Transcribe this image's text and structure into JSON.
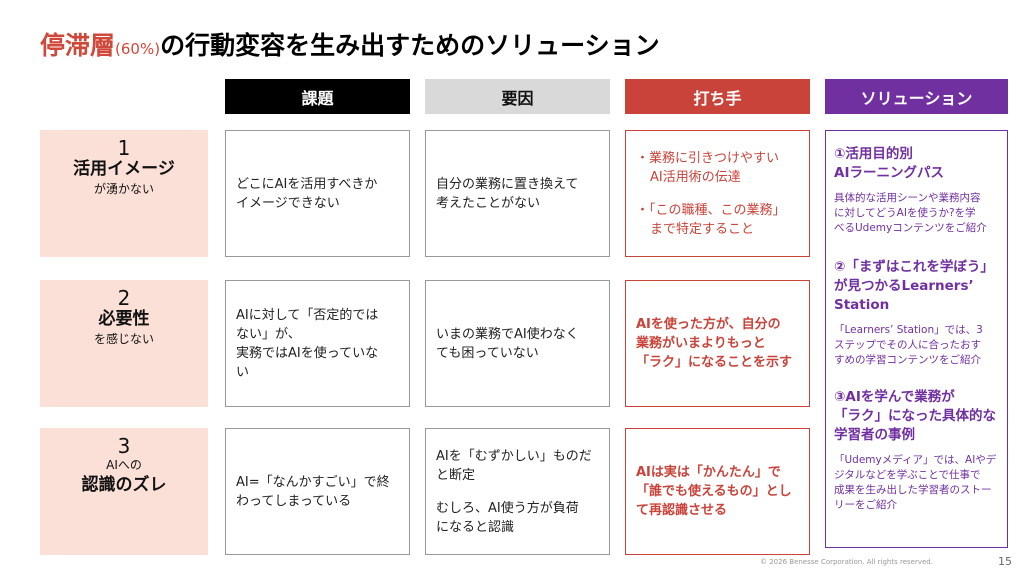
{
  "title": {
    "highlight": "停滞層",
    "note": "(60%)",
    "rest": "の行動変容を生み出すためのソリューション"
  },
  "headers": [
    "課題",
    "要因",
    "打ち手",
    "ソリューション"
  ],
  "rows": [
    {
      "number": "1",
      "label": {
        "main": "活用イメージ",
        "after": "が湧かない"
      },
      "issue": [
        [
          "どこにAIを活用すべきか",
          "イメージできない"
        ]
      ],
      "cause": [
        [
          "自分の業務に置き換えて",
          "考えたことがない"
        ]
      ],
      "action": [
        [
          "・業務に引きつけやすい",
          "AI活用術の伝達"
        ],
        [
          "・「この職種、この業務」",
          "まで特定すること"
        ]
      ]
    },
    {
      "number": "2",
      "label": {
        "main": "必要性",
        "after": "を感じない"
      },
      "issue": [
        [
          "AIに対して「否定的では",
          "ない」が、",
          "実務ではAIを使っていな",
          "い"
        ]
      ],
      "cause": [
        [
          "いまの業務でAI使わなく",
          "ても困っていない"
        ]
      ],
      "action": [
        [
          "AIを使った方が、自分の",
          "業務がいまよりもっと",
          "「ラク」になることを示す"
        ]
      ]
    },
    {
      "number": "3",
      "label": {
        "before": "AIへの",
        "main": "認識のズレ"
      },
      "issue": [
        [
          "AI=「なんかすごい」で終",
          "わってしまっている"
        ]
      ],
      "cause": [
        [
          "AIを「むずかしい」ものだ",
          "と断定"
        ],
        [
          "むしろ、AI使う方が負荷",
          "になると認識"
        ]
      ],
      "action": [
        [
          "AIは実は「かんたん」で",
          "「誰でも使えるもの」とし",
          "て再認識させる"
        ]
      ]
    }
  ],
  "solutions": [
    {
      "title": [
        "①活用目的別",
        "AIラーニングパス"
      ],
      "desc": [
        "具体的な活用シーンや業務内容",
        "に対してどうAIを使うか?を学",
        "べるUdemyコンテンツをご紹介"
      ]
    },
    {
      "title": [
        "②「まずはこれを学ぼう」",
        "が見つかるLearners’",
        "Station"
      ],
      "desc": [
        "「Learners’ Station」では、3",
        "ステップでその人に合ったおす",
        "すめの学習コンテンツをご紹介"
      ]
    },
    {
      "title": [
        "③AIを学んで業務が",
        "「ラク」になった具体的な",
        "学習者の事例"
      ],
      "desc": [
        "「Udemyメディア」では、AIやデ",
        "ジタルなどを学ぶことで仕事で",
        "成果を生み出した学習者のストー",
        "リーをご紹介"
      ]
    }
  ],
  "footer": {
    "copyright": "© 2026 Benesse Corporation. All rights reserved.",
    "page": "15"
  }
}
